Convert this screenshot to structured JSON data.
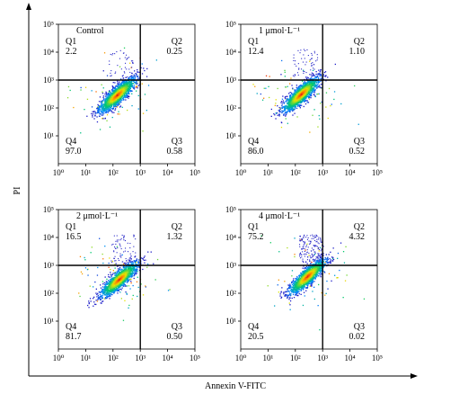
{
  "figure": {
    "y_axis_label": "PI",
    "x_axis_label": "Annexin V-FITC"
  },
  "chart_data": [
    {
      "type": "scatter",
      "title": "Control",
      "xlabel": "Annexin V-FITC",
      "ylabel": "PI",
      "xscale": "log",
      "yscale": "log",
      "xlim": [
        1,
        100000
      ],
      "ylim": [
        1,
        100000
      ],
      "x_tick_labels": [
        "10^0",
        "10^1",
        "10^2",
        "10^3",
        "10^4",
        "10^5"
      ],
      "y_tick_labels": [
        "10^1",
        "10^2",
        "10^3",
        "10^4",
        "10^5"
      ],
      "gate": {
        "x": 1000,
        "y": 1000
      },
      "quadrants": [
        {
          "name": "Q1",
          "value": "2.2"
        },
        {
          "name": "Q2",
          "value": "0.25"
        },
        {
          "name": "Q3",
          "value": "0.58"
        },
        {
          "name": "Q4",
          "value": "97.0"
        }
      ]
    },
    {
      "type": "scatter",
      "title": "1 μmol·L⁻¹",
      "xlabel": "Annexin V-FITC",
      "ylabel": "PI",
      "xscale": "log",
      "yscale": "log",
      "xlim": [
        1,
        100000
      ],
      "ylim": [
        1,
        100000
      ],
      "x_tick_labels": [
        "10^0",
        "10^1",
        "10^2",
        "10^3",
        "10^4",
        "10^5"
      ],
      "y_tick_labels": [
        "10^1",
        "10^2",
        "10^3",
        "10^4",
        "10^5"
      ],
      "gate": {
        "x": 1000,
        "y": 1000
      },
      "quadrants": [
        {
          "name": "Q1",
          "value": "12.4"
        },
        {
          "name": "Q2",
          "value": "1.10"
        },
        {
          "name": "Q3",
          "value": "0.52"
        },
        {
          "name": "Q4",
          "value": "86.0"
        }
      ]
    },
    {
      "type": "scatter",
      "title": "2 μmol·L⁻¹",
      "xlabel": "Annexin V-FITC",
      "ylabel": "PI",
      "xscale": "log",
      "yscale": "log",
      "xlim": [
        1,
        100000
      ],
      "ylim": [
        1,
        100000
      ],
      "x_tick_labels": [
        "10^0",
        "10^1",
        "10^2",
        "10^3",
        "10^4",
        "10^5"
      ],
      "y_tick_labels": [
        "10^1",
        "10^2",
        "10^3",
        "10^4",
        "10^5"
      ],
      "gate": {
        "x": 1000,
        "y": 1000
      },
      "quadrants": [
        {
          "name": "Q1",
          "value": "16.5"
        },
        {
          "name": "Q2",
          "value": "1.32"
        },
        {
          "name": "Q3",
          "value": "0.50"
        },
        {
          "name": "Q4",
          "value": "81.7"
        }
      ]
    },
    {
      "type": "scatter",
      "title": "4 μmol·L⁻¹",
      "xlabel": "Annexin V-FITC",
      "ylabel": "PI",
      "xscale": "log",
      "yscale": "log",
      "xlim": [
        1,
        100000
      ],
      "ylim": [
        1,
        100000
      ],
      "x_tick_labels": [
        "10^0",
        "10^1",
        "10^2",
        "10^3",
        "10^4",
        "10^5"
      ],
      "y_tick_labels": [
        "10^1",
        "10^2",
        "10^3",
        "10^4",
        "10^5"
      ],
      "gate": {
        "x": 1000,
        "y": 1000
      },
      "quadrants": [
        {
          "name": "Q1",
          "value": "75.2"
        },
        {
          "name": "Q2",
          "value": "4.32"
        },
        {
          "name": "Q3",
          "value": "0.02"
        },
        {
          "name": "Q4",
          "value": "20.5"
        }
      ]
    }
  ]
}
